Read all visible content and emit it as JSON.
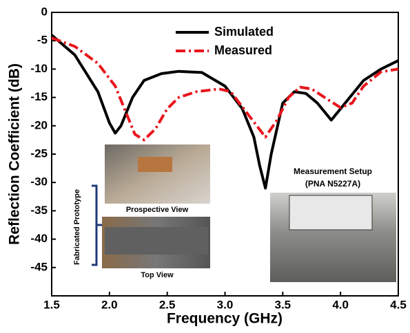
{
  "chart_data": {
    "type": "line",
    "x_label": "Frequency (GHz)",
    "y_label": "Reflection Coefficient (dB)",
    "xlim": [
      1.5,
      4.5
    ],
    "xticks": [
      1.5,
      {
        "value": 2,
        "label": "2.0"
      },
      2.5,
      {
        "value": 3,
        "label": "3.0"
      },
      3.5,
      {
        "value": 4,
        "label": "4.0"
      },
      4.5
    ],
    "ylim": [
      -50,
      0
    ],
    "yticks": [
      0,
      -5,
      -10,
      -15,
      -20,
      -25,
      -30,
      -35,
      -40,
      -45
    ],
    "legend": "upper-center",
    "series": [
      {
        "name": "Simulated",
        "color": "#000000",
        "line_style": "solid",
        "x": [
          1.5,
          1.7,
          1.9,
          2.0,
          2.05,
          2.1,
          2.2,
          2.3,
          2.45,
          2.6,
          2.8,
          3.0,
          3.15,
          3.25,
          3.3,
          3.35,
          3.4,
          3.5,
          3.6,
          3.7,
          3.8,
          3.92,
          4.0,
          4.2,
          4.35,
          4.5
        ],
        "values": [
          -4,
          -7.5,
          -14,
          -19.5,
          -21.3,
          -20,
          -15,
          -12,
          -10.8,
          -10.4,
          -10.6,
          -13,
          -17,
          -22,
          -27,
          -31,
          -25,
          -16,
          -14,
          -14.3,
          -16,
          -19,
          -17,
          -12,
          -10,
          -8.5
        ]
      },
      {
        "name": "Measured",
        "color": "#e8141b",
        "line_style": "dashdot",
        "x": [
          1.5,
          1.7,
          1.9,
          2.05,
          2.15,
          2.22,
          2.3,
          2.4,
          2.5,
          2.6,
          2.75,
          2.95,
          3.05,
          3.2,
          3.35,
          3.45,
          3.55,
          3.65,
          3.75,
          3.9,
          4.0,
          4.1,
          4.2,
          4.35,
          4.5
        ],
        "values": [
          -4.5,
          -6,
          -9,
          -13,
          -18,
          -21.5,
          -22.5,
          -20.5,
          -17,
          -15,
          -14,
          -13.5,
          -14,
          -18,
          -22,
          -19,
          -15,
          -13.2,
          -13.5,
          -15.5,
          -16.8,
          -16,
          -13,
          -10.5,
          -10
        ]
      }
    ],
    "annotations": [
      "Prospective View",
      "Top View",
      "Fabricated Prototype",
      "Measurement Setup",
      "(PNA N5227A)"
    ]
  }
}
